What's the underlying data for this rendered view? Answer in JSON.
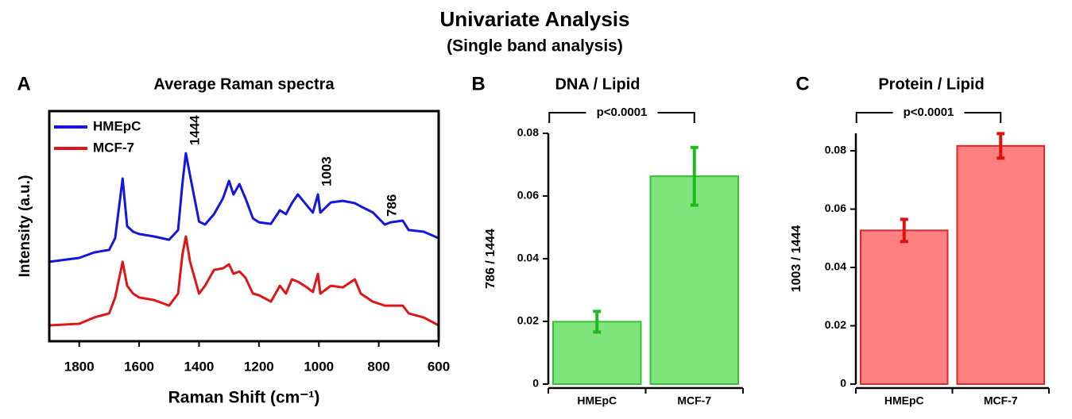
{
  "title": "Univariate Analysis",
  "subtitle": "(Single band analysis)",
  "chart_data": [
    {
      "type": "line",
      "panel_label": "A",
      "title": "Average Raman spectra",
      "x_label": "Raman Shift (cm⁻¹)",
      "y_label": "Intensity (a.u.)",
      "x": [
        1900,
        1800,
        1750,
        1700,
        1680,
        1655,
        1640,
        1620,
        1600,
        1550,
        1500,
        1470,
        1455,
        1444,
        1430,
        1400,
        1380,
        1350,
        1320,
        1300,
        1285,
        1265,
        1245,
        1220,
        1200,
        1160,
        1130,
        1110,
        1090,
        1070,
        1040,
        1020,
        1003,
        995,
        960,
        920,
        880,
        860,
        820,
        780,
        760,
        720,
        700,
        650,
        600
      ],
      "series": [
        {
          "name": "HMEpC",
          "color": "#1515e0",
          "values": [
            0.345,
            0.362,
            0.386,
            0.397,
            0.448,
            0.707,
            0.5,
            0.476,
            0.466,
            0.455,
            0.441,
            0.483,
            0.69,
            0.817,
            0.72,
            0.52,
            0.507,
            0.552,
            0.621,
            0.697,
            0.638,
            0.683,
            0.621,
            0.534,
            0.517,
            0.51,
            0.569,
            0.552,
            0.6,
            0.638,
            0.59,
            0.559,
            0.638,
            0.559,
            0.603,
            0.61,
            0.6,
            0.586,
            0.56,
            0.507,
            0.517,
            0.524,
            0.483,
            0.476,
            0.448
          ]
        },
        {
          "name": "MCF-7",
          "color": "#e01515",
          "values": [
            0.069,
            0.076,
            0.103,
            0.121,
            0.19,
            0.345,
            0.241,
            0.207,
            0.19,
            0.179,
            0.155,
            0.207,
            0.38,
            0.455,
            0.345,
            0.207,
            0.241,
            0.31,
            0.317,
            0.334,
            0.293,
            0.303,
            0.276,
            0.207,
            0.2,
            0.172,
            0.241,
            0.207,
            0.269,
            0.259,
            0.234,
            0.214,
            0.293,
            0.207,
            0.241,
            0.234,
            0.269,
            0.207,
            0.172,
            0.155,
            0.155,
            0.155,
            0.121,
            0.103,
            0.069
          ]
        }
      ],
      "xlim": [
        1900,
        600
      ],
      "xticks": [
        1800,
        1600,
        1400,
        1200,
        1000,
        800,
        600
      ],
      "ylim": [
        0,
        1
      ],
      "legend": "upper left",
      "annotations": [
        1444,
        1003,
        786
      ]
    },
    {
      "type": "bar",
      "panel_label": "B",
      "title": "DNA / Lipid",
      "y_label": "786 / 1444",
      "categories": [
        "HMEpC",
        "MCF-7"
      ],
      "values": [
        0.0199,
        0.0663
      ],
      "errors": [
        0.0033,
        0.0092
      ],
      "color": "#80e47c",
      "edge_color": "#33c233",
      "error_color": "#1fb81f",
      "ylim": [
        0,
        0.08
      ],
      "yticks": [
        0,
        0.02,
        0.04,
        0.06,
        0.08
      ],
      "significance": "p<0.0001"
    },
    {
      "type": "bar",
      "panel_label": "C",
      "title": "Protein / Lipid",
      "y_label": "1003 / 1444",
      "categories": [
        "HMEpC",
        "MCF-7"
      ],
      "values": [
        0.0527,
        0.0817
      ],
      "errors": [
        0.0038,
        0.0042
      ],
      "color": "#ff8080",
      "edge_color": "#d92a2a",
      "error_color": "#e01010",
      "ylim": [
        0,
        0.086
      ],
      "yticks": [
        0,
        0.02,
        0.04,
        0.06,
        0.08
      ],
      "significance": "p<0.0001"
    }
  ]
}
